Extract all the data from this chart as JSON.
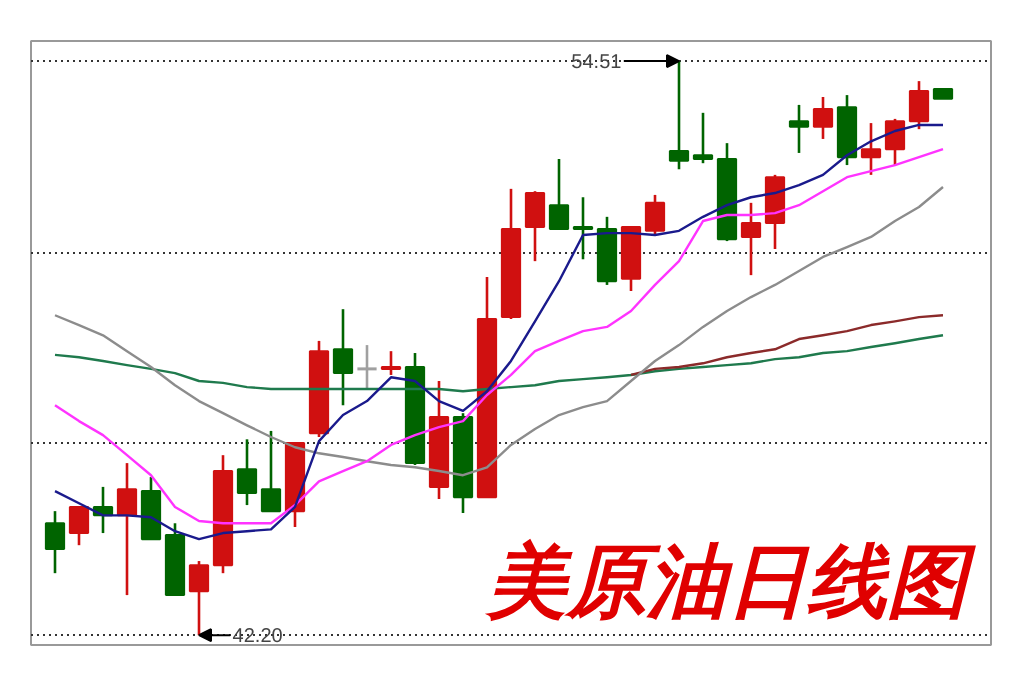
{
  "chart_data": {
    "type": "candlestick",
    "title": "美原油日线图",
    "categories": [
      null,
      null,
      null,
      null,
      null,
      null,
      null,
      null,
      null,
      null,
      null,
      null,
      null,
      null,
      null,
      null,
      null,
      null,
      null,
      null,
      null,
      null,
      null,
      null,
      null,
      null,
      null,
      null,
      null,
      null,
      null,
      null,
      null,
      null,
      null,
      null,
      null,
      null
    ],
    "ohlc": [
      [
        44.6,
        44.86,
        43.53,
        44.05
      ],
      [
        44.39,
        44.95,
        44.13,
        44.95
      ],
      [
        44.95,
        45.38,
        44.39,
        44.77
      ],
      [
        44.77,
        45.89,
        43.06,
        45.33
      ],
      [
        45.29,
        45.59,
        44.26,
        44.26
      ],
      [
        44.35,
        44.6,
        43.06,
        43.06
      ],
      [
        43.14,
        43.79,
        42.2,
        43.7
      ],
      [
        43.7,
        46.06,
        43.53,
        45.72
      ],
      [
        45.76,
        46.4,
        44.99,
        45.25
      ],
      [
        45.33,
        46.58,
        44.86,
        44.86
      ],
      [
        44.86,
        46.32,
        44.52,
        46.32
      ],
      [
        46.53,
        48.51,
        46.45,
        48.29
      ],
      [
        48.33,
        49.19,
        47.13,
        47.82
      ],
      [
        47.91,
        48.42,
        47.48,
        47.91
      ],
      [
        47.91,
        48.29,
        47.78,
        47.95
      ],
      [
        47.95,
        48.25,
        45.85,
        45.89
      ],
      [
        45.38,
        47.65,
        45.12,
        46.88
      ],
      [
        46.88,
        46.96,
        44.82,
        45.16
      ],
      [
        45.16,
        49.88,
        45.16,
        48.98
      ],
      [
        49.02,
        51.77,
        48.98,
        50.91
      ],
      [
        50.95,
        51.72,
        50.22,
        51.68
      ],
      [
        51.42,
        52.41,
        50.91,
        50.91
      ],
      [
        50.95,
        51.59,
        50.26,
        50.91
      ],
      [
        50.91,
        51.17,
        49.71,
        49.79
      ],
      [
        49.84,
        50.95,
        49.58,
        50.95
      ],
      [
        50.87,
        51.64,
        50.78,
        51.47
      ],
      [
        52.58,
        54.51,
        52.19,
        52.37
      ],
      [
        52.49,
        53.4,
        52.32,
        52.41
      ],
      [
        52.41,
        52.75,
        50.65,
        50.69
      ],
      [
        50.74,
        51.47,
        49.92,
        51.04
      ],
      [
        51.04,
        52.07,
        50.48,
        52.02
      ],
      [
        53.22,
        53.57,
        52.54,
        53.1
      ],
      [
        53.1,
        53.74,
        52.84,
        53.48
      ],
      [
        53.52,
        53.78,
        52.28,
        52.45
      ],
      [
        52.45,
        53.18,
        52.07,
        52.62
      ],
      [
        52.62,
        53.27,
        52.28,
        53.22
      ],
      [
        53.22,
        54.08,
        53.05,
        53.87
      ],
      [
        53.91,
        53.91,
        53.7,
        53.7
      ]
    ],
    "colors": [
      "#006400",
      "#d01010",
      "#006400",
      "#d01010",
      "#006400",
      "#006400",
      "#d01010",
      "#d01010",
      "#006400",
      "#006400",
      "#d01010",
      "#d01010",
      "#006400",
      "#a0a0a0",
      "#d01010",
      "#006400",
      "#d01010",
      "#006400",
      "#d01010",
      "#d01010",
      "#d01010",
      "#006400",
      "#006400",
      "#006400",
      "#d01010",
      "#d01010",
      "#006400",
      "#006400",
      "#006400",
      "#d01010",
      "#d01010",
      "#006400",
      "#d01010",
      "#006400",
      "#d01010",
      "#d01010",
      "#d01010",
      "#006400"
    ],
    "series": [
      {
        "type": "line",
        "color": "#1f7a4d",
        "values": [
          48.21,
          48.16,
          48.08,
          47.99,
          47.91,
          47.82,
          47.65,
          47.61,
          47.52,
          47.48,
          47.48,
          47.48,
          47.48,
          47.48,
          47.48,
          47.48,
          47.48,
          47.43,
          47.48,
          47.52,
          47.56,
          47.65,
          47.69,
          47.73,
          47.78,
          47.86,
          47.91,
          47.95,
          47.99,
          48.03,
          48.12,
          48.16,
          48.25,
          48.29,
          48.38,
          48.46,
          48.55,
          48.63
        ]
      },
      {
        "type": "line",
        "color": "#8b2a2a",
        "values": [
          null,
          null,
          null,
          null,
          null,
          null,
          null,
          null,
          null,
          null,
          null,
          null,
          null,
          null,
          null,
          null,
          null,
          null,
          null,
          null,
          null,
          null,
          null,
          null,
          47.78,
          47.91,
          47.95,
          48.03,
          48.16,
          48.25,
          48.33,
          48.55,
          48.63,
          48.72,
          48.85,
          48.93,
          49.02,
          49.06
        ]
      },
      {
        "type": "line",
        "color": "#8c8c8c",
        "values": [
          49.06,
          48.85,
          48.63,
          48.29,
          47.95,
          47.56,
          47.22,
          46.96,
          46.7,
          46.45,
          46.23,
          46.1,
          46.02,
          45.93,
          45.85,
          45.8,
          45.72,
          45.63,
          45.8,
          46.28,
          46.62,
          46.92,
          47.09,
          47.22,
          47.65,
          48.08,
          48.42,
          48.81,
          49.15,
          49.45,
          49.71,
          50.01,
          50.31,
          50.52,
          50.74,
          51.08,
          51.38,
          51.81
        ]
      },
      {
        "type": "line",
        "color": "#ff33ff",
        "values": [
          47.13,
          46.79,
          46.49,
          46.06,
          45.63,
          44.95,
          44.65,
          44.6,
          44.6,
          44.6,
          44.99,
          45.5,
          45.72,
          45.93,
          46.28,
          46.49,
          46.66,
          46.79,
          47.35,
          47.78,
          48.29,
          48.51,
          48.72,
          48.81,
          49.15,
          49.71,
          50.22,
          51.08,
          51.21,
          51.21,
          51.25,
          51.42,
          51.72,
          52.02,
          52.15,
          52.28,
          52.45,
          52.62
        ]
      },
      {
        "type": "line",
        "color": "#1a1a8c",
        "values": [
          45.29,
          45.03,
          44.77,
          44.77,
          44.73,
          44.43,
          44.26,
          44.39,
          44.43,
          44.47,
          44.95,
          46.36,
          46.92,
          47.22,
          47.73,
          47.65,
          47.22,
          47.01,
          47.43,
          48.08,
          48.93,
          49.79,
          50.78,
          50.82,
          50.82,
          50.78,
          50.87,
          51.17,
          51.42,
          51.59,
          51.68,
          51.85,
          52.07,
          52.49,
          52.79,
          53.01,
          53.14,
          53.14
        ]
      }
    ],
    "ylim": [
      41.99,
      54.94
    ],
    "yticks": [
      {
        "value": 42.2,
        "label": null
      },
      {
        "value": 46.3,
        "label": null
      },
      {
        "value": 50.41,
        "label": null
      },
      {
        "value": 54.51,
        "label": null
      }
    ],
    "grid": "y",
    "tick_labels": false,
    "annotations": [
      "54.51",
      "42.20"
    ]
  }
}
